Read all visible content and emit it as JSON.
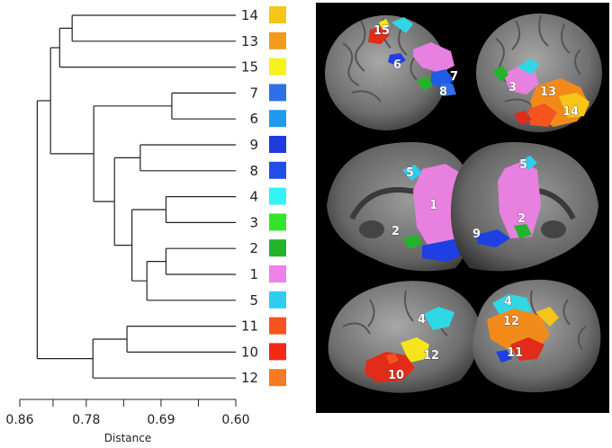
{
  "dendrogram": {
    "leaves": [
      {
        "label": "14",
        "color": "#F5C518"
      },
      {
        "label": "13",
        "color": "#F39A1E"
      },
      {
        "label": "15",
        "color": "#F7F21A"
      },
      {
        "label": "7",
        "color": "#2F6FE8"
      },
      {
        "label": "6",
        "color": "#1E9BEE"
      },
      {
        "label": "9",
        "color": "#1F3BE0"
      },
      {
        "label": "8",
        "color": "#1F4FE6"
      },
      {
        "label": "4",
        "color": "#33F3F5"
      },
      {
        "label": "3",
        "color": "#33E52A"
      },
      {
        "label": "2",
        "color": "#22B52A"
      },
      {
        "label": "1",
        "color": "#EE82E8"
      },
      {
        "label": "5",
        "color": "#2ECDF0"
      },
      {
        "label": "11",
        "color": "#F5541E"
      },
      {
        "label": "10",
        "color": "#F22A14"
      },
      {
        "label": "12",
        "color": "#F57A24"
      }
    ],
    "merges": [
      {
        "a": "L14",
        "b": "L13",
        "height": 0.797,
        "id": "m1"
      },
      {
        "a": "m1",
        "b": "L15",
        "height": 0.812,
        "id": "m2"
      },
      {
        "a": "L7",
        "b": "L6",
        "height": 0.677,
        "id": "m3"
      },
      {
        "a": "L9",
        "b": "L8",
        "height": 0.715,
        "id": "m4"
      },
      {
        "a": "L4",
        "b": "L3",
        "height": 0.684,
        "id": "m5"
      },
      {
        "a": "L2",
        "b": "L1",
        "height": 0.684,
        "id": "m6"
      },
      {
        "a": "m6",
        "b": "L5",
        "height": 0.707,
        "id": "m7"
      },
      {
        "a": "m5",
        "b": "m7",
        "height": 0.725,
        "id": "m8"
      },
      {
        "a": "m4",
        "b": "m8",
        "height": 0.746,
        "id": "m9"
      },
      {
        "a": "m3",
        "b": "m9",
        "height": 0.771,
        "id": "m10"
      },
      {
        "a": "m2",
        "b": "m10",
        "height": 0.823,
        "id": "m11"
      },
      {
        "a": "L11",
        "b": "L10",
        "height": 0.731,
        "id": "m12"
      },
      {
        "a": "m12",
        "b": "L12",
        "height": 0.772,
        "id": "m13"
      },
      {
        "a": "m11",
        "b": "m13",
        "height": 0.839,
        "id": "m14"
      }
    ],
    "axis": {
      "title": "Distance",
      "ticks": [
        "0.86",
        "0.78",
        "0.69",
        "0.60"
      ],
      "tick_values": [
        0.86,
        0.78,
        0.69,
        0.6
      ],
      "minor_values": [
        0.82,
        0.735,
        0.645
      ],
      "reversed": true
    }
  },
  "brain_panel": {
    "background": "#000000",
    "region_labels": [
      "15",
      "6",
      "7",
      "8",
      "3",
      "13",
      "14",
      "5",
      "1",
      "2",
      "5",
      "9",
      "2",
      "4",
      "12",
      "10",
      "4",
      "12",
      "11"
    ]
  }
}
